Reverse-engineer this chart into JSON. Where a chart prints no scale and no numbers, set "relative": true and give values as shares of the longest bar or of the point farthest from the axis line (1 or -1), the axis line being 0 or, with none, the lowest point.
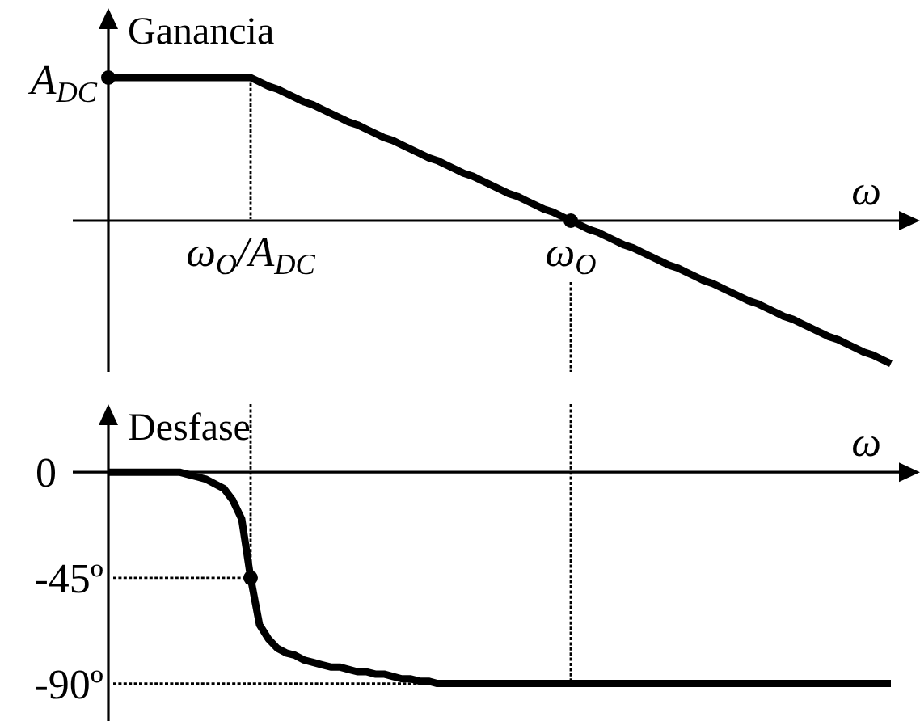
{
  "chart_data": [
    {
      "type": "line",
      "relative": true,
      "ylabel": "Ganancia",
      "xlabel": "ω",
      "tick_labels": "x",
      "annotations": [
        "A$_{DC}$"
      ],
      "categories": [
        null,
        null,
        null,
        null,
        null,
        null,
        null,
        null,
        null,
        null,
        null,
        null,
        null,
        null,
        null,
        null,
        "ω$_{O}$/A$_{DC}$",
        null,
        null,
        null,
        null,
        null,
        null,
        null,
        null,
        null,
        null,
        null,
        null,
        null,
        null,
        null,
        null,
        null,
        null,
        null,
        null,
        null,
        null,
        null,
        null,
        null,
        null,
        null,
        null,
        null,
        null,
        null,
        null,
        null,
        null,
        null,
        "ω$_{O}$",
        null,
        null,
        null,
        null,
        null,
        null,
        null,
        null,
        null,
        null,
        null,
        null,
        null,
        null,
        null,
        null,
        null,
        null,
        null,
        null,
        null,
        null,
        null,
        null,
        null,
        null,
        null,
        null,
        null,
        null,
        null,
        null,
        null,
        null,
        null,
        null
      ],
      "ref_lines": [
        {
          "axis": "x",
          "value": "ω$_{O}$/A$_{DC}$",
          "line_style": "dotted",
          "color": "#000000"
        },
        {
          "axis": "x",
          "value": "ω$_{O}$",
          "line_style": "dotted",
          "color": "#000000"
        }
      ],
      "series": [
        {
          "color": "#000000",
          "values": [
            1,
            1,
            1,
            1,
            1,
            1,
            1,
            1,
            1,
            1,
            1,
            1,
            1,
            1,
            1,
            1,
            1,
            0.97,
            0.94,
            0.92,
            0.89,
            0.86,
            0.83,
            0.81,
            0.78,
            0.75,
            0.72,
            0.69,
            0.67,
            0.64,
            0.61,
            0.58,
            0.56,
            0.53,
            0.5,
            0.47,
            0.44,
            0.42,
            0.39,
            0.36,
            0.33,
            0.31,
            0.28,
            0.25,
            0.22,
            0.19,
            0.17,
            0.14,
            0.11,
            0.08,
            0.06,
            0.03,
            0,
            -0.03,
            -0.06,
            -0.08,
            -0.11,
            -0.14,
            -0.17,
            -0.19,
            -0.22,
            -0.25,
            -0.28,
            -0.31,
            -0.33,
            -0.36,
            -0.39,
            -0.42,
            -0.44,
            -0.47,
            -0.5,
            -0.53,
            -0.56,
            -0.58,
            -0.61,
            -0.64,
            -0.67,
            -0.69,
            -0.72,
            -0.75,
            -0.78,
            -0.81,
            -0.83,
            -0.86,
            -0.89,
            -0.92,
            -0.94,
            -0.97,
            -1
          ]
        },
        {
          "type": "scatter",
          "color": "#000000",
          "marker": "circle",
          "values": [
            1,
            null,
            null,
            null,
            null,
            null,
            null,
            null,
            null,
            null,
            null,
            null,
            null,
            null,
            null,
            null,
            null,
            null,
            null,
            null,
            null,
            null,
            null,
            null,
            null,
            null,
            null,
            null,
            null,
            null,
            null,
            null,
            null,
            null,
            null,
            null,
            null,
            null,
            null,
            null,
            null,
            null,
            null,
            null,
            null,
            null,
            null,
            null,
            null,
            null,
            null,
            null,
            0,
            null,
            null,
            null,
            null,
            null,
            null,
            null,
            null,
            null,
            null,
            null,
            null,
            null,
            null,
            null,
            null,
            null,
            null,
            null,
            null,
            null,
            null,
            null,
            null,
            null,
            null,
            null,
            null,
            null,
            null,
            null,
            null,
            null,
            null,
            null,
            null
          ]
        }
      ]
    },
    {
      "type": "line",
      "ylabel": "Desfase",
      "xlabel": "ω",
      "ylim": [
        -106,
        29
      ],
      "yticks": [
        0,
        {
          "value": -45,
          "label": "-45º"
        },
        {
          "value": -90,
          "label": "-90º"
        }
      ],
      "tick_labels": "y",
      "categories": [
        null,
        null,
        null,
        null,
        null,
        null,
        null,
        null,
        null,
        null,
        null,
        null,
        null,
        null,
        null,
        null,
        "ω$_{O}$/A$_{DC}$",
        null,
        null,
        null,
        null,
        null,
        null,
        null,
        null,
        null,
        null,
        null,
        null,
        null,
        null,
        null,
        null,
        null,
        null,
        null,
        null,
        null,
        null,
        null,
        null,
        null,
        null,
        null,
        null,
        null,
        null,
        null,
        null,
        null,
        null,
        null,
        "ω$_{O}$",
        null,
        null,
        null,
        null,
        null,
        null,
        null,
        null,
        null,
        null,
        null,
        null,
        null,
        null,
        null,
        null,
        null,
        null,
        null,
        null,
        null,
        null,
        null,
        null,
        null,
        null,
        null,
        null,
        null,
        null,
        null,
        null,
        null,
        null,
        null,
        null
      ],
      "ref_lines": [
        {
          "axis": "x",
          "value": "ω$_{O}$/A$_{DC}$",
          "line_style": "dotted",
          "color": "#000000"
        },
        {
          "axis": "x",
          "value": "ω$_{O}$",
          "line_style": "dotted",
          "color": "#000000"
        },
        {
          "axis": "y",
          "value": -45,
          "line_style": "dotted",
          "color": "#000000"
        },
        {
          "axis": "y",
          "value": -90,
          "line_style": "dotted",
          "color": "#000000"
        }
      ],
      "series": [
        {
          "color": "#000000",
          "values": [
            0,
            0,
            0,
            0,
            0,
            0,
            0,
            0,
            0,
            -1,
            -2,
            -3,
            -5,
            -7,
            -12,
            -20,
            -45,
            -65,
            -71,
            -75,
            -77,
            -78,
            -80,
            -81,
            -82,
            -83,
            -83,
            -84,
            -85,
            -85,
            -86,
            -86,
            -87,
            -88,
            -88,
            -89,
            -89,
            -90,
            -90,
            -90,
            -90,
            -90,
            -90,
            -90,
            -90,
            -90,
            -90,
            -90,
            -90,
            -90,
            -90,
            -90,
            -90,
            -90,
            -90,
            -90,
            -90,
            -90,
            -90,
            -90,
            -90,
            -90,
            -90,
            -90,
            -90,
            -90,
            -90,
            -90,
            -90,
            -90,
            -90,
            -90,
            -90,
            -90,
            -90,
            -90,
            -90,
            -90,
            -90,
            -90,
            -90,
            -90,
            -90,
            -90,
            -90,
            -90,
            -90,
            -90,
            -90
          ]
        },
        {
          "type": "scatter",
          "color": "#000000",
          "marker": "circle",
          "values": [
            null,
            null,
            null,
            null,
            null,
            null,
            null,
            null,
            null,
            null,
            null,
            null,
            null,
            null,
            null,
            null,
            -45,
            null,
            null,
            null,
            null,
            null,
            null,
            null,
            null,
            null,
            null,
            null,
            null,
            null,
            null,
            null,
            null,
            null,
            null,
            null,
            null,
            null,
            null,
            null,
            null,
            null,
            null,
            null,
            null,
            null,
            null,
            null,
            null,
            null,
            null,
            null,
            null,
            null,
            null,
            null,
            null,
            null,
            null,
            null,
            null,
            null,
            null,
            null,
            null,
            null,
            null,
            null,
            null,
            null,
            null,
            null,
            null,
            null,
            null,
            null,
            null,
            null,
            null,
            null,
            null,
            null,
            null,
            null,
            null,
            null,
            null,
            null,
            null
          ]
        }
      ]
    }
  ]
}
